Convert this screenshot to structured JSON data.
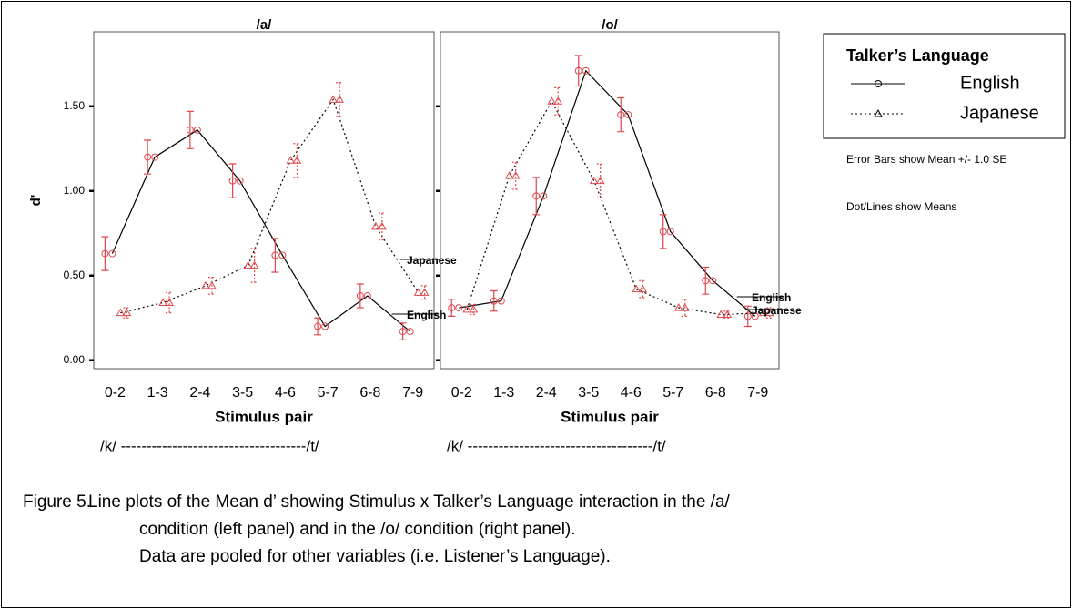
{
  "chart_data": [
    {
      "type": "line",
      "title": "/a/",
      "ylabel": "d'",
      "xlabel": "Stimulus pair",
      "continuum": "/k/ ------------------------------------/t/",
      "categories": [
        "0-2",
        "1-3",
        "2-4",
        "3-5",
        "4-6",
        "5-7",
        "6-8",
        "7-9"
      ],
      "ylim": [
        -0.05,
        1.94
      ],
      "yticks": [
        {
          "value": 0,
          "label": "0.00"
        },
        {
          "value": 0.5,
          "label": "0.50"
        },
        {
          "value": 1,
          "label": "1.00"
        },
        {
          "value": 1.5,
          "label": "1.50"
        }
      ],
      "ytick_labels": true,
      "series": [
        {
          "name": "English",
          "color": "#000000",
          "marker_color": "#e0474c",
          "marker": "circle",
          "dashed": false,
          "values": [
            0.63,
            1.2,
            1.36,
            1.06,
            0.62,
            0.2,
            0.38,
            0.17
          ],
          "error": [
            0.1,
            0.1,
            0.11,
            0.1,
            0.1,
            0.05,
            0.07,
            0.05
          ]
        },
        {
          "name": "Japanese",
          "color": "#000000",
          "marker_color": "#e0474c",
          "marker": "triangle",
          "dashed": true,
          "values": [
            0.28,
            0.34,
            0.44,
            0.56,
            1.18,
            1.54,
            0.79,
            0.4
          ],
          "error": [
            0.03,
            0.06,
            0.05,
            0.1,
            0.1,
            0.1,
            0.08,
            0.04
          ]
        }
      ]
    },
    {
      "type": "line",
      "title": "/o/",
      "xlabel": "Stimulus pair",
      "continuum": "/k/ ------------------------------------/t/",
      "categories": [
        "0-2",
        "1-3",
        "2-4",
        "3-5",
        "4-6",
        "5-7",
        "6-8",
        "7-9"
      ],
      "ylim": [
        -0.05,
        1.94
      ],
      "yticks": [
        0,
        0.5,
        1,
        1.5
      ],
      "ytick_labels": false,
      "series": [
        {
          "name": "English",
          "color": "#000000",
          "marker_color": "#e0474c",
          "marker": "circle",
          "dashed": false,
          "values": [
            0.31,
            0.35,
            0.97,
            1.71,
            1.45,
            0.76,
            0.47,
            0.26
          ],
          "error": [
            0.05,
            0.06,
            0.11,
            0.09,
            0.1,
            0.1,
            0.08,
            0.06
          ]
        },
        {
          "name": "Japanese",
          "color": "#000000",
          "marker_color": "#e0474c",
          "marker": "triangle",
          "dashed": true,
          "values": [
            0.3,
            1.09,
            1.53,
            1.06,
            0.42,
            0.31,
            0.27,
            0.28
          ],
          "error": [
            0.03,
            0.08,
            0.08,
            0.1,
            0.05,
            0.05,
            0.02,
            0.03
          ]
        }
      ]
    }
  ],
  "legend_title": "Talker’s Language",
  "notes": [
    "Error Bars show Mean +/- 1.0 SE",
    "Dot/Lines show Means"
  ],
  "caption": {
    "label": "Figure 5.",
    "lines": [
      "Line plots of the Mean d’ showing Stimulus x Talker’s Language interaction in the /a/",
      "condition (left panel) and in the /o/ condition (right panel).",
      "Data are pooled for other variables (i.e. Listener’s Language)."
    ]
  }
}
